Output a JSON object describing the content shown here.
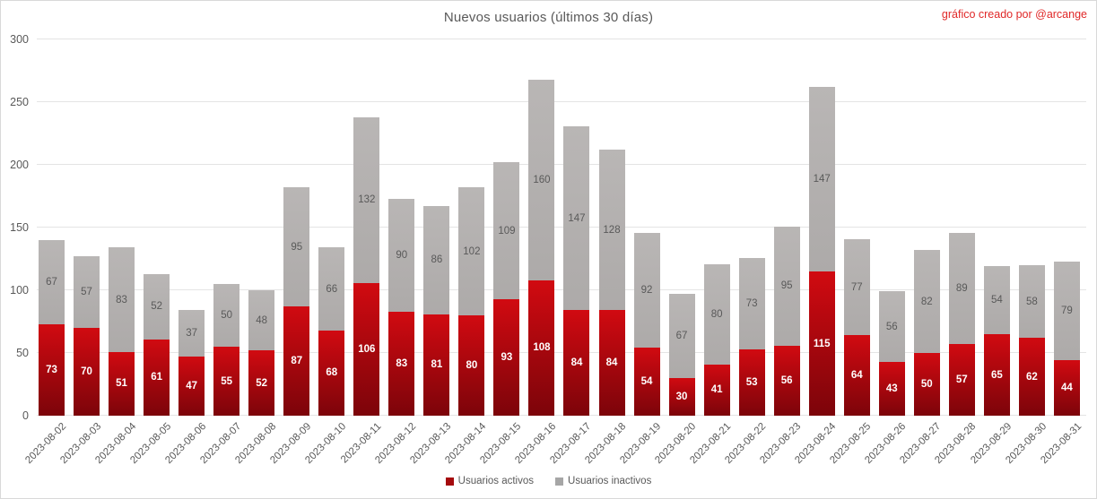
{
  "credit": "gráfico creado por @arcange",
  "colors": {
    "active_top": "#d10a11",
    "active_bottom": "#7c040a",
    "inactive_top": "#b9b6b5",
    "inactive_bottom": "#adaaa9",
    "active_legend": "#a50b0e",
    "inactive_legend": "#a6a6a6",
    "grid": "#e4e4e4",
    "axis_text": "#595959",
    "credit_text": "#e02828"
  },
  "chart_data": {
    "type": "bar",
    "stacked": true,
    "title": "Nuevos usuarios (últimos 30 días)",
    "categories": [
      "2023-08-02",
      "2023-08-03",
      "2023-08-04",
      "2023-08-05",
      "2023-08-06",
      "2023-08-07",
      "2023-08-08",
      "2023-08-09",
      "2023-08-10",
      "2023-08-11",
      "2023-08-12",
      "2023-08-13",
      "2023-08-14",
      "2023-08-15",
      "2023-08-16",
      "2023-08-17",
      "2023-08-18",
      "2023-08-19",
      "2023-08-20",
      "2023-08-21",
      "2023-08-22",
      "2023-08-23",
      "2023-08-24",
      "2023-08-25",
      "2023-08-26",
      "2023-08-27",
      "2023-08-28",
      "2023-08-29",
      "2023-08-30",
      "2023-08-31"
    ],
    "series": [
      {
        "name": "Usuarios activos",
        "values": [
          73,
          70,
          51,
          61,
          47,
          55,
          52,
          87,
          68,
          106,
          83,
          81,
          80,
          93,
          108,
          84,
          84,
          54,
          30,
          41,
          53,
          56,
          115,
          64,
          43,
          50,
          57,
          65,
          62,
          44
        ]
      },
      {
        "name": "Usuarios inactivos",
        "values": [
          67,
          57,
          83,
          52,
          37,
          50,
          48,
          95,
          66,
          132,
          90,
          86,
          102,
          109,
          160,
          147,
          128,
          92,
          67,
          80,
          73,
          95,
          147,
          77,
          56,
          82,
          89,
          54,
          58,
          79
        ]
      }
    ],
    "xlabel": "",
    "ylabel": "",
    "ylim": [
      0,
      300
    ],
    "yticks": [
      0,
      50,
      100,
      150,
      200,
      250,
      300
    ],
    "grid": true,
    "legend_position": "bottom",
    "data_labels": true
  }
}
